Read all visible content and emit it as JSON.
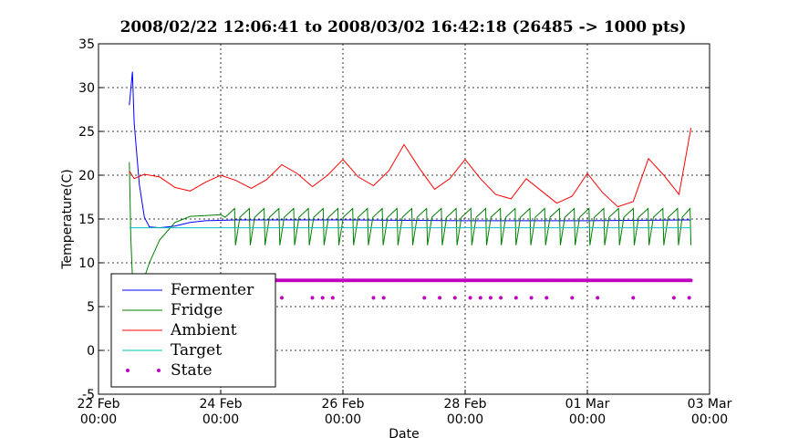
{
  "chart_data": {
    "type": "line",
    "title": "2008/02/22 12:06:41 to 2008/03/02 16:42:18 (26485 -> 1000 pts)",
    "xlabel": "Date",
    "ylabel": "Temperature(C)",
    "xlim": [
      "2008-02-22 00:00",
      "2008-03-03 00:00"
    ],
    "ylim": [
      -5,
      35
    ],
    "grid": true,
    "legend_position": "lower-left",
    "x_ticks": [
      {
        "date": "2008-02-22",
        "line1": "22 Feb",
        "line2": "00:00"
      },
      {
        "date": "2008-02-24",
        "line1": "24 Feb",
        "line2": "00:00"
      },
      {
        "date": "2008-02-26",
        "line1": "26 Feb",
        "line2": "00:00"
      },
      {
        "date": "2008-02-28",
        "line1": "28 Feb",
        "line2": "00:00"
      },
      {
        "date": "2008-03-01",
        "line1": "01 Mar",
        "line2": "00:00"
      },
      {
        "date": "2008-03-03",
        "line1": "03 Mar",
        "line2": "00:00"
      }
    ],
    "y_ticks": [
      -5,
      0,
      5,
      10,
      15,
      20,
      25,
      30,
      35
    ],
    "series": [
      {
        "name": "Fermenter",
        "color": "#0000ff",
        "style": "line",
        "points": [
          [
            "2008-02-22 12:06",
            28.0
          ],
          [
            "2008-02-22 13:20",
            31.8
          ],
          [
            "2008-02-22 14:00",
            26.0
          ],
          [
            "2008-02-22 16:00",
            19.0
          ],
          [
            "2008-02-22 18:00",
            15.2
          ],
          [
            "2008-02-22 20:00",
            14.1
          ],
          [
            "2008-02-23 00:00",
            14.0
          ],
          [
            "2008-02-23 06:00",
            14.2
          ],
          [
            "2008-02-23 12:00",
            14.6
          ],
          [
            "2008-02-23 18:00",
            14.8
          ],
          [
            "2008-02-24 06:00",
            14.9
          ],
          [
            "2008-02-26 00:00",
            14.9
          ],
          [
            "2008-02-28 00:00",
            14.8
          ],
          [
            "2008-03-01 00:00",
            14.8
          ],
          [
            "2008-03-02 16:42",
            14.9
          ]
        ]
      },
      {
        "name": "Fridge",
        "color": "#008000",
        "style": "line",
        "points": [
          [
            "2008-02-22 12:06",
            21.5
          ],
          [
            "2008-02-22 12:40",
            13.0
          ],
          [
            "2008-02-22 13:30",
            7.0
          ],
          [
            "2008-02-22 14:30",
            5.0
          ],
          [
            "2008-02-22 17:00",
            7.5
          ],
          [
            "2008-02-22 20:00",
            10.0
          ],
          [
            "2008-02-23 00:00",
            12.6
          ],
          [
            "2008-02-23 06:00",
            14.6
          ],
          [
            "2008-02-23 12:00",
            15.3
          ],
          [
            "2008-02-23 18:00",
            15.4
          ],
          [
            "2008-02-24 00:00",
            15.5
          ]
        ],
        "cycle_start": "2008-02-24 00:00",
        "cycle_hours": 5.8,
        "cycle_high": 16.2,
        "cycle_low": 12.0
      },
      {
        "name": "Ambient",
        "color": "#ff0000",
        "style": "line",
        "points": [
          [
            "2008-02-22 12:06",
            20.5
          ],
          [
            "2008-02-22 14:00",
            19.6
          ],
          [
            "2008-02-22 18:00",
            20.1
          ],
          [
            "2008-02-23 00:00",
            19.8
          ],
          [
            "2008-02-23 06:00",
            18.6
          ],
          [
            "2008-02-23 12:00",
            18.2
          ],
          [
            "2008-02-23 18:00",
            19.2
          ],
          [
            "2008-02-24 00:00",
            20.0
          ],
          [
            "2008-02-24 06:00",
            19.4
          ],
          [
            "2008-02-24 12:00",
            18.5
          ],
          [
            "2008-02-24 18:00",
            19.5
          ],
          [
            "2008-02-25 00:00",
            21.2
          ],
          [
            "2008-02-25 06:00",
            20.2
          ],
          [
            "2008-02-25 12:00",
            18.7
          ],
          [
            "2008-02-25 18:00",
            20.0
          ],
          [
            "2008-02-26 00:00",
            21.8
          ],
          [
            "2008-02-26 06:00",
            19.8
          ],
          [
            "2008-02-26 12:00",
            18.8
          ],
          [
            "2008-02-26 18:00",
            20.5
          ],
          [
            "2008-02-27 00:00",
            23.5
          ],
          [
            "2008-02-27 06:00",
            20.8
          ],
          [
            "2008-02-27 12:00",
            18.4
          ],
          [
            "2008-02-27 18:00",
            19.6
          ],
          [
            "2008-02-28 00:00",
            21.8
          ],
          [
            "2008-02-28 06:00",
            19.6
          ],
          [
            "2008-02-28 12:00",
            17.8
          ],
          [
            "2008-02-28 18:00",
            17.3
          ],
          [
            "2008-02-29 00:00",
            19.6
          ],
          [
            "2008-02-29 06:00",
            18.2
          ],
          [
            "2008-02-29 12:00",
            16.8
          ],
          [
            "2008-02-29 18:00",
            17.6
          ],
          [
            "2008-03-01 00:00",
            20.2
          ],
          [
            "2008-03-01 06:00",
            18.0
          ],
          [
            "2008-03-01 12:00",
            16.4
          ],
          [
            "2008-03-01 18:00",
            17.0
          ],
          [
            "2008-03-02 00:00",
            21.9
          ],
          [
            "2008-03-02 06:00",
            20.0
          ],
          [
            "2008-03-02 12:00",
            17.8
          ],
          [
            "2008-03-02 16:42",
            25.4
          ]
        ]
      },
      {
        "name": "Target",
        "color": "#00bfbf",
        "style": "line",
        "points": [
          [
            "2008-02-22 12:06",
            14.0
          ],
          [
            "2008-03-02 16:42",
            14.0
          ]
        ]
      },
      {
        "name": "State",
        "color": "#bf00bf",
        "style": "markers",
        "baseline_value": 8,
        "baseline_range": [
          "2008-02-24 06:00",
          "2008-03-02 16:42"
        ],
        "points": [
          [
            "2008-02-25 00:00",
            6
          ],
          [
            "2008-02-25 12:00",
            6
          ],
          [
            "2008-02-25 16:00",
            6
          ],
          [
            "2008-02-25 20:00",
            6
          ],
          [
            "2008-02-26 12:00",
            6
          ],
          [
            "2008-02-26 16:00",
            6
          ],
          [
            "2008-02-27 08:00",
            6
          ],
          [
            "2008-02-27 14:00",
            6
          ],
          [
            "2008-02-27 20:00",
            6
          ],
          [
            "2008-02-28 02:00",
            6
          ],
          [
            "2008-02-28 06:00",
            6
          ],
          [
            "2008-02-28 10:00",
            6
          ],
          [
            "2008-02-28 14:00",
            6
          ],
          [
            "2008-02-28 20:00",
            6
          ],
          [
            "2008-02-29 02:00",
            6
          ],
          [
            "2008-02-29 08:00",
            6
          ],
          [
            "2008-02-29 18:00",
            6
          ],
          [
            "2008-03-01 04:00",
            6
          ],
          [
            "2008-03-01 18:00",
            6
          ],
          [
            "2008-03-02 10:00",
            6
          ],
          [
            "2008-03-02 16:00",
            6
          ]
        ]
      }
    ]
  }
}
